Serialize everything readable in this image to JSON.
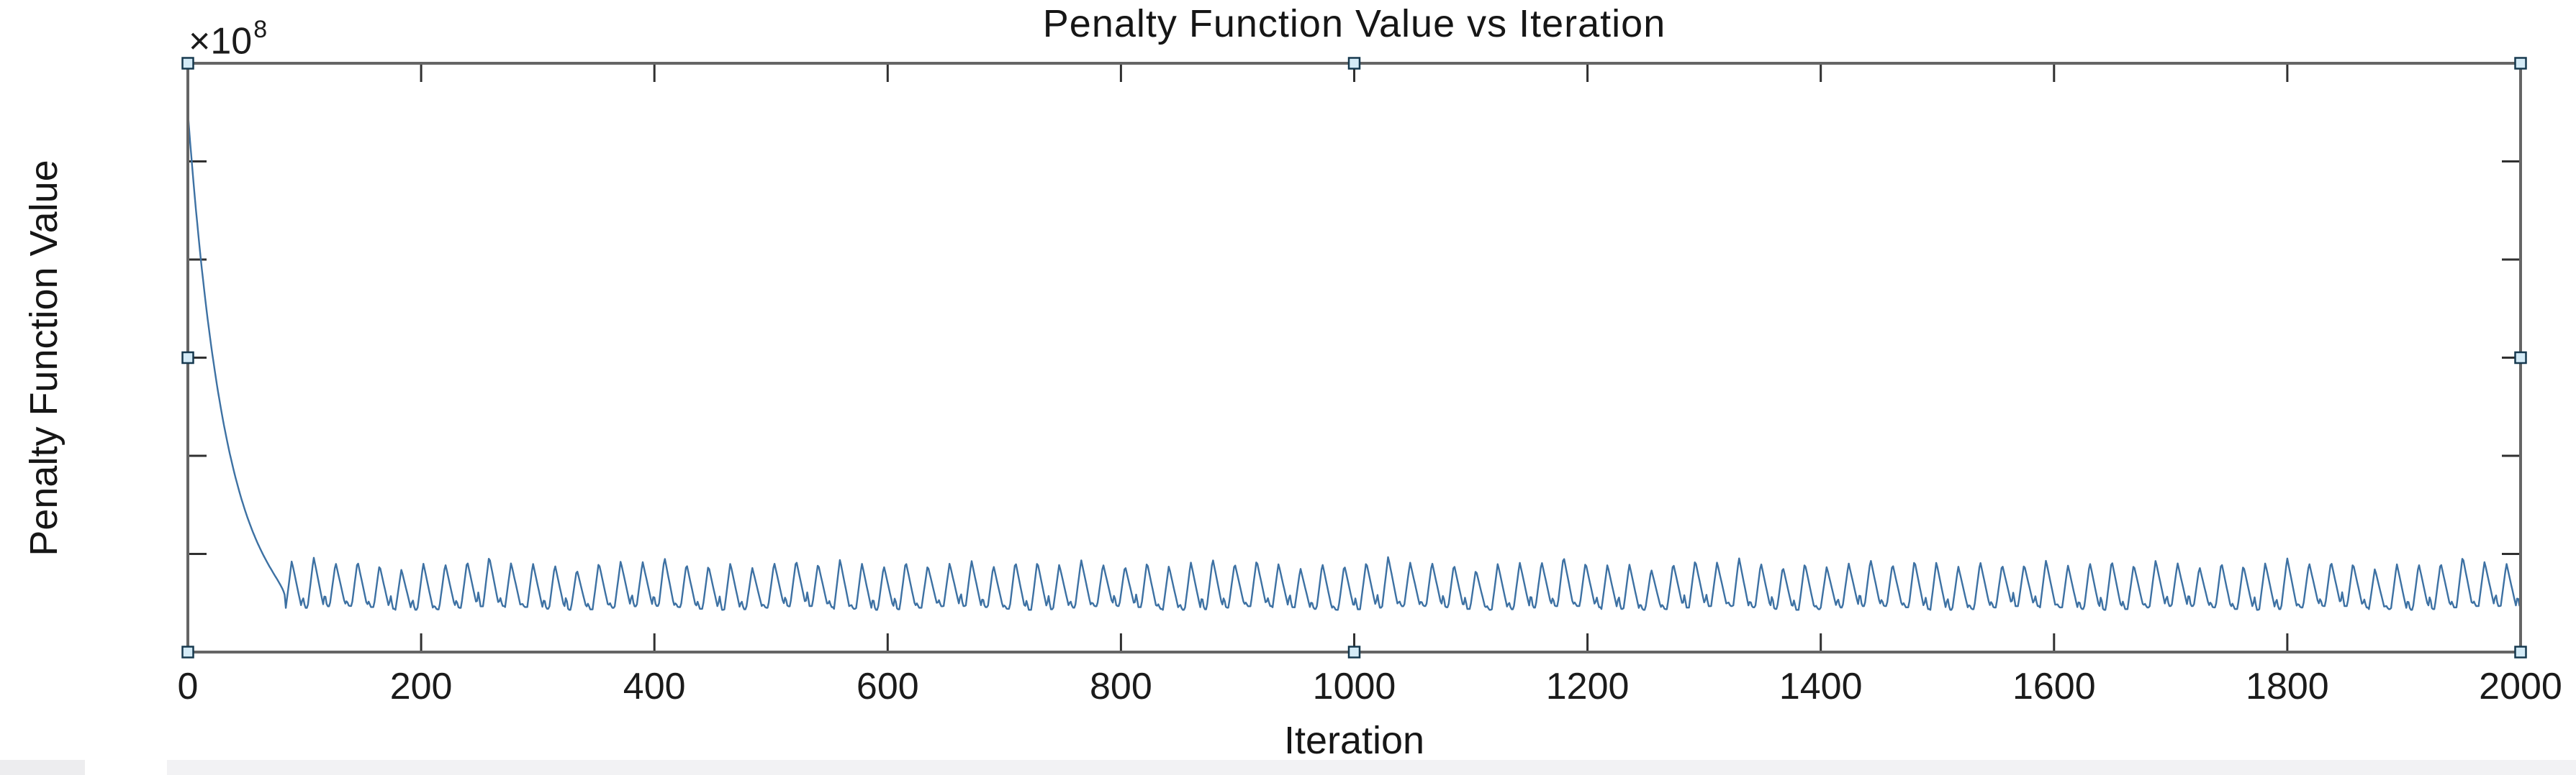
{
  "page": {
    "background": "#ffffff"
  },
  "chart_data": {
    "type": "line",
    "title": "Penalty Function Value vs Iteration",
    "xlabel": "Iteration",
    "ylabel": "Penalty Function Value",
    "y_exponent": {
      "base": "×10",
      "power": "8"
    },
    "xlim": [
      0,
      2000
    ],
    "ylim_e8": [
      8.967,
      8.973
    ],
    "x_ticks": [
      "0",
      "200",
      "400",
      "600",
      "800",
      "1000",
      "1200",
      "1400",
      "1600",
      "1800",
      "2000"
    ],
    "y_ticks": [
      "8.973",
      "8.972",
      "8.971",
      "8.97",
      "8.969",
      "8.968",
      "8.967"
    ],
    "grid": false,
    "legend": "none",
    "box": true,
    "tick_direction": "in",
    "colors": {
      "line": "#3d71a3",
      "axes_box": "#656565",
      "tick": "#303030",
      "text": "#1b1b1b",
      "handle_fill": "#d4ebf7",
      "handle_stroke": "#16394f"
    },
    "series": [
      {
        "name": "penalty-function-value",
        "start_value_e8": 8.9725,
        "descent": {
          "x_start": 0,
          "x_end": 84,
          "amp_e8": 0.00505,
          "tau": 36,
          "taper": 0.3
        },
        "oscillation": {
          "x_start": 84,
          "x_end": 2000,
          "period": 18.8,
          "min_e8": 8.96745,
          "peak_e8": 8.96791,
          "profile": [
            [
              0.0,
              0.0
            ],
            [
              0.27,
              1.0
            ],
            [
              0.7,
              0.04
            ],
            [
              0.78,
              0.2
            ],
            [
              0.88,
              0.0
            ],
            [
              1.0,
              0.0
            ]
          ],
          "peak_jitter": [
            0.06,
            2.3,
            0.05,
            0.77
          ],
          "bump_jitter": [
            0.6,
            1.7,
            0.5
          ]
        }
      }
    ],
    "selection_handles": "8 handles: 4 corners + 4 edge midpoints (axes selected in plot-edit mode)"
  }
}
